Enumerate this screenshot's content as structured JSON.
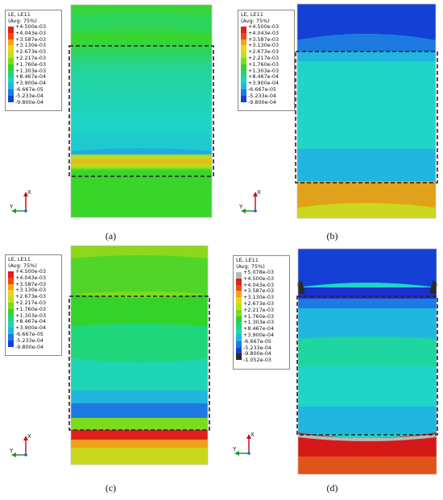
{
  "legend_title": "LE, LE11",
  "legend_subtitle": "(Avg: 75%)",
  "axis_x": "X",
  "axis_y": "Y",
  "legend_std": [
    {
      "label": "+4.500e-03",
      "color": "#e0201a"
    },
    {
      "label": "+4.043e-03",
      "color": "#f04a12"
    },
    {
      "label": "+3.587e-03",
      "color": "#f5a21a"
    },
    {
      "label": "+3.130e-03",
      "color": "#e9d51c"
    },
    {
      "label": "+2.673e-03",
      "color": "#b9e41a"
    },
    {
      "label": "+2.217e-03",
      "color": "#7cdb1c"
    },
    {
      "label": "+1.760e-03",
      "color": "#35d32a"
    },
    {
      "label": "+1.303e-03",
      "color": "#1fd67b"
    },
    {
      "label": "+8.467e-04",
      "color": "#1ed5b5"
    },
    {
      "label": "+3.900e-04",
      "color": "#21b6e0"
    },
    {
      "label": "-6.667e-05",
      "color": "#1d7ae0"
    },
    {
      "label": "-5.233e-04",
      "color": "#1440d6"
    },
    {
      "label": "-9.800e-04",
      "color": ""
    }
  ],
  "legend_d": [
    {
      "label": "+5.078e-03",
      "color": "#b8b8b8"
    },
    {
      "label": "+4.500e-03",
      "color": "#e0201a"
    },
    {
      "label": "+4.043e-03",
      "color": "#f04a12"
    },
    {
      "label": "+3.587e-03",
      "color": "#f5a21a"
    },
    {
      "label": "+3.130e-03",
      "color": "#e9d51c"
    },
    {
      "label": "+2.673e-03",
      "color": "#b9e41a"
    },
    {
      "label": "+2.217e-03",
      "color": "#7cdb1c"
    },
    {
      "label": "+1.760e-03",
      "color": "#35d32a"
    },
    {
      "label": "+1.303e-03",
      "color": "#1fd67b"
    },
    {
      "label": "+8.467e-04",
      "color": "#1ed5b5"
    },
    {
      "label": "+3.900e-04",
      "color": "#21b6e0"
    },
    {
      "label": "-6.667e-05",
      "color": "#1d7ae0"
    },
    {
      "label": "-5.233e-04",
      "color": "#1440d6"
    },
    {
      "label": "-9.800e-04",
      "color": "#2a2a2a"
    },
    {
      "label": "-1.052e-03",
      "color": ""
    }
  ],
  "captions": {
    "a": "(a)",
    "b": "(b)",
    "c": "(c)",
    "d": "(d)"
  }
}
